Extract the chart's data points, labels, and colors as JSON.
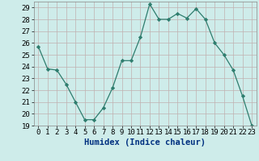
{
  "x": [
    0,
    1,
    2,
    3,
    4,
    5,
    6,
    7,
    8,
    9,
    10,
    11,
    12,
    13,
    14,
    15,
    16,
    17,
    18,
    19,
    20,
    21,
    22,
    23
  ],
  "y": [
    25.7,
    23.8,
    23.7,
    22.5,
    21.0,
    19.5,
    19.5,
    20.5,
    22.2,
    24.5,
    24.5,
    26.5,
    29.3,
    28.0,
    28.0,
    28.5,
    28.1,
    28.9,
    28.0,
    26.0,
    25.0,
    23.7,
    21.5,
    19.0
  ],
  "title": "",
  "xlabel": "Humidex (Indice chaleur)",
  "ylabel": "",
  "xlim": [
    -0.5,
    23.5
  ],
  "ylim": [
    19,
    29.5
  ],
  "yticks": [
    19,
    20,
    21,
    22,
    23,
    24,
    25,
    26,
    27,
    28,
    29
  ],
  "xticks": [
    0,
    1,
    2,
    3,
    4,
    5,
    6,
    7,
    8,
    9,
    10,
    11,
    12,
    13,
    14,
    15,
    16,
    17,
    18,
    19,
    20,
    21,
    22,
    23
  ],
  "line_color": "#2e7d6e",
  "marker": "D",
  "marker_size": 2.2,
  "bg_color": "#ceecea",
  "grid_color": "#c0b0b0",
  "xlabel_color": "#003080",
  "xlabel_fontsize": 7.5,
  "tick_fontsize": 6.5
}
